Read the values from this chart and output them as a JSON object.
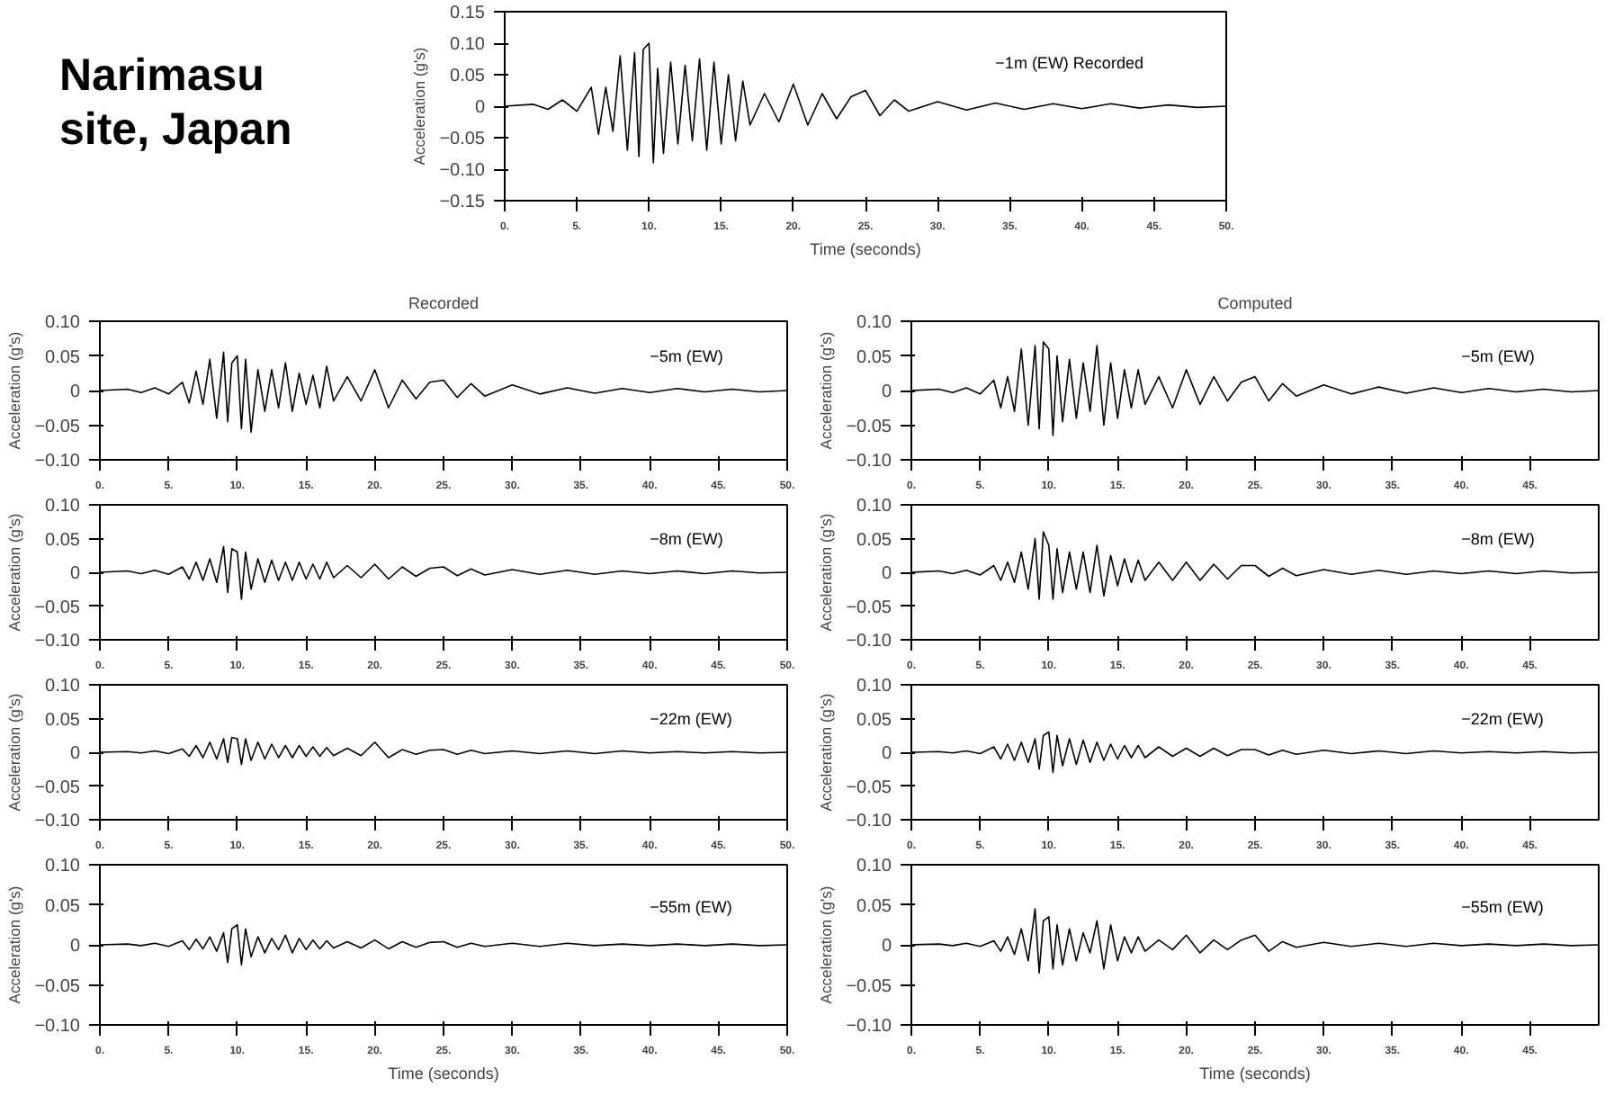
{
  "chart_data": [
    {
      "type": "line",
      "annotations": [
        "Narimasu site, Japan"
      ],
      "xlabel": "Time (seconds)",
      "ylabel": "Acceleration (g's)",
      "xlim": [
        0,
        50
      ],
      "ylim": [
        -0.15,
        0.15
      ],
      "xticks": [
        {
          "value": 0,
          "label": "0."
        },
        {
          "value": 5,
          "label": "5."
        },
        {
          "value": 10,
          "label": "10."
        },
        {
          "value": 15,
          "label": "15."
        },
        {
          "value": 20,
          "label": "20."
        },
        {
          "value": 25,
          "label": "25."
        },
        {
          "value": 30,
          "label": "30."
        },
        {
          "value": 35,
          "label": "35."
        },
        {
          "value": 40,
          "label": "40."
        },
        {
          "value": 45,
          "label": "45."
        },
        {
          "value": 50,
          "label": "50."
        }
      ],
      "yticks": [
        {
          "value": -0.15,
          "label": "−0.15"
        },
        {
          "value": -0.1,
          "label": "−0.10"
        },
        {
          "value": -0.05,
          "label": "−0.05"
        },
        {
          "value": 0,
          "label": "0"
        },
        {
          "value": 0.05,
          "label": "0.05"
        },
        {
          "value": 0.1,
          "label": "0.10"
        },
        {
          "value": 0.15,
          "label": "0.15"
        }
      ],
      "series": [
        {
          "name": "−1m (EW) Recorded",
          "color": "#000000",
          "x": [
            0,
            2,
            3,
            4,
            5,
            6,
            6.5,
            7,
            7.5,
            8,
            8.5,
            9,
            9.3,
            9.6,
            10,
            10.3,
            10.6,
            11,
            11.5,
            12,
            12.5,
            13,
            13.5,
            14,
            14.5,
            15,
            15.5,
            16,
            16.5,
            17,
            18,
            19,
            20,
            21,
            22,
            23,
            24,
            25,
            26,
            27,
            28,
            30,
            32,
            34,
            36,
            38,
            40,
            42,
            44,
            46,
            48,
            50
          ],
          "values": [
            0,
            0.003,
            -0.005,
            0.01,
            -0.008,
            0.03,
            -0.045,
            0.03,
            -0.04,
            0.08,
            -0.07,
            0.085,
            -0.08,
            0.09,
            0.1,
            -0.09,
            0.06,
            -0.075,
            0.07,
            -0.06,
            0.065,
            -0.055,
            0.075,
            -0.07,
            0.07,
            -0.06,
            0.05,
            -0.055,
            0.04,
            -0.03,
            0.02,
            -0.025,
            0.035,
            -0.03,
            0.02,
            -0.02,
            0.015,
            0.025,
            -0.015,
            0.01,
            -0.008,
            0.007,
            -0.006,
            0.005,
            -0.005,
            0.004,
            -0.004,
            0.004,
            -0.003,
            0.002,
            -0.002,
            0
          ]
        }
      ]
    },
    {
      "type": "line",
      "title": "Recorded",
      "ylabel": "Acceleration (g's)",
      "xlim": [
        0,
        50
      ],
      "ylim": [
        -0.1,
        0.1
      ],
      "xticks": [
        {
          "value": 0,
          "label": "0."
        },
        {
          "value": 5,
          "label": "5."
        },
        {
          "value": 10,
          "label": "10."
        },
        {
          "value": 15,
          "label": "15."
        },
        {
          "value": 20,
          "label": "20."
        },
        {
          "value": 25,
          "label": "25."
        },
        {
          "value": 30,
          "label": "30."
        },
        {
          "value": 35,
          "label": "35."
        },
        {
          "value": 40,
          "label": "40."
        },
        {
          "value": 45,
          "label": "45."
        },
        {
          "value": 50,
          "label": "50."
        }
      ],
      "yticks": [
        {
          "value": -0.1,
          "label": "−0.10"
        },
        {
          "value": -0.05,
          "label": "−0.05"
        },
        {
          "value": 0,
          "label": "0"
        },
        {
          "value": 0.05,
          "label": "0.05"
        },
        {
          "value": 0.1,
          "label": "0.10"
        }
      ],
      "series": [
        {
          "name": "−5m (EW)",
          "color": "#000000",
          "x": [
            0,
            2,
            3,
            4,
            5,
            6,
            6.5,
            7,
            7.5,
            8,
            8.5,
            9,
            9.3,
            9.6,
            10,
            10.3,
            10.6,
            11,
            11.5,
            12,
            12.5,
            13,
            13.5,
            14,
            14.5,
            15,
            15.5,
            16,
            16.5,
            17,
            18,
            19,
            20,
            21,
            22,
            23,
            24,
            25,
            26,
            27,
            28,
            30,
            32,
            34,
            36,
            38,
            40,
            42,
            44,
            46,
            48,
            50
          ],
          "values": [
            0,
            0.002,
            -0.003,
            0.004,
            -0.005,
            0.012,
            -0.018,
            0.028,
            -0.02,
            0.045,
            -0.04,
            0.055,
            -0.045,
            0.04,
            0.05,
            -0.055,
            0.045,
            -0.06,
            0.03,
            -0.03,
            0.03,
            -0.025,
            0.04,
            -0.03,
            0.025,
            -0.02,
            0.022,
            -0.025,
            0.035,
            -0.015,
            0.02,
            -0.015,
            0.03,
            -0.025,
            0.015,
            -0.012,
            0.012,
            0.015,
            -0.01,
            0.01,
            -0.008,
            0.008,
            -0.005,
            0.004,
            -0.004,
            0.003,
            -0.003,
            0.003,
            -0.002,
            0.002,
            -0.002,
            0
          ]
        }
      ]
    },
    {
      "type": "line",
      "ylabel": "Acceleration (g's)",
      "xlim": [
        0,
        50
      ],
      "ylim": [
        -0.1,
        0.1
      ],
      "xticks": [
        {
          "value": 0,
          "label": "0."
        },
        {
          "value": 5,
          "label": "5."
        },
        {
          "value": 10,
          "label": "10."
        },
        {
          "value": 15,
          "label": "15."
        },
        {
          "value": 20,
          "label": "20."
        },
        {
          "value": 25,
          "label": "25."
        },
        {
          "value": 30,
          "label": "30."
        },
        {
          "value": 35,
          "label": "35."
        },
        {
          "value": 40,
          "label": "40."
        },
        {
          "value": 45,
          "label": "45."
        },
        {
          "value": 50,
          "label": "50."
        }
      ],
      "yticks": [
        {
          "value": -0.1,
          "label": "−0.10"
        },
        {
          "value": -0.05,
          "label": "−0.05"
        },
        {
          "value": 0,
          "label": "0"
        },
        {
          "value": 0.05,
          "label": "0.05"
        },
        {
          "value": 0.1,
          "label": "0.10"
        }
      ],
      "series": [
        {
          "name": "−8m (EW)",
          "color": "#000000",
          "x": [
            0,
            2,
            3,
            4,
            5,
            6,
            6.5,
            7,
            7.5,
            8,
            8.5,
            9,
            9.3,
            9.6,
            10,
            10.3,
            10.6,
            11,
            11.5,
            12,
            12.5,
            13,
            13.5,
            14,
            14.5,
            15,
            15.5,
            16,
            16.5,
            17,
            18,
            19,
            20,
            21,
            22,
            23,
            24,
            25,
            26,
            27,
            28,
            30,
            32,
            34,
            36,
            38,
            40,
            42,
            44,
            46,
            48,
            50
          ],
          "values": [
            0,
            0.002,
            -0.002,
            0.003,
            -0.003,
            0.008,
            -0.01,
            0.015,
            -0.012,
            0.02,
            -0.015,
            0.038,
            -0.03,
            0.035,
            0.03,
            -0.04,
            0.03,
            -0.025,
            0.02,
            -0.015,
            0.018,
            -0.012,
            0.015,
            -0.012,
            0.015,
            -0.01,
            0.012,
            -0.01,
            0.015,
            -0.008,
            0.01,
            -0.008,
            0.012,
            -0.01,
            0.008,
            -0.006,
            0.006,
            0.008,
            -0.005,
            0.005,
            -0.004,
            0.004,
            -0.003,
            0.003,
            -0.003,
            0.002,
            -0.002,
            0.002,
            -0.002,
            0.002,
            -0.001,
            0
          ]
        }
      ]
    },
    {
      "type": "line",
      "ylabel": "Acceleration (g's)",
      "xlim": [
        0,
        50
      ],
      "ylim": [
        -0.1,
        0.1
      ],
      "xticks": [
        {
          "value": 0,
          "label": "0."
        },
        {
          "value": 5,
          "label": "5."
        },
        {
          "value": 10,
          "label": "10."
        },
        {
          "value": 15,
          "label": "15."
        },
        {
          "value": 20,
          "label": "20."
        },
        {
          "value": 25,
          "label": "25."
        },
        {
          "value": 30,
          "label": "30."
        },
        {
          "value": 35,
          "label": "35."
        },
        {
          "value": 40,
          "label": "40."
        },
        {
          "value": 45,
          "label": "45."
        },
        {
          "value": 50,
          "label": "50."
        }
      ],
      "yticks": [
        {
          "value": -0.1,
          "label": "−0.10"
        },
        {
          "value": -0.05,
          "label": "−0.05"
        },
        {
          "value": 0,
          "label": "0"
        },
        {
          "value": 0.05,
          "label": "0.05"
        },
        {
          "value": 0.1,
          "label": "0.10"
        }
      ],
      "series": [
        {
          "name": "−22m (EW)",
          "color": "#000000",
          "x": [
            0,
            2,
            3,
            4,
            5,
            6,
            6.5,
            7,
            7.5,
            8,
            8.5,
            9,
            9.3,
            9.6,
            10,
            10.3,
            10.6,
            11,
            11.5,
            12,
            12.5,
            13,
            13.5,
            14,
            14.5,
            15,
            15.5,
            16,
            16.5,
            17,
            18,
            19,
            20,
            21,
            22,
            23,
            24,
            25,
            26,
            27,
            28,
            30,
            32,
            34,
            36,
            38,
            40,
            42,
            44,
            46,
            48,
            50
          ],
          "values": [
            0,
            0.001,
            -0.001,
            0.002,
            -0.002,
            0.005,
            -0.006,
            0.01,
            -0.008,
            0.015,
            -0.01,
            0.02,
            -0.015,
            0.022,
            0.02,
            -0.018,
            0.02,
            -0.012,
            0.015,
            -0.01,
            0.012,
            -0.008,
            0.01,
            -0.008,
            0.01,
            -0.006,
            0.008,
            -0.006,
            0.007,
            -0.005,
            0.006,
            -0.005,
            0.015,
            -0.008,
            0.004,
            -0.003,
            0.003,
            0.004,
            -0.003,
            0.003,
            -0.002,
            0.002,
            -0.002,
            0.002,
            -0.002,
            0.002,
            -0.001,
            0.001,
            -0.001,
            0.001,
            -0.001,
            0
          ]
        }
      ]
    },
    {
      "type": "line",
      "xlabel": "Time (seconds)",
      "ylabel": "Acceleration (g's)",
      "xlim": [
        0,
        50
      ],
      "ylim": [
        -0.1,
        0.1
      ],
      "xticks": [
        {
          "value": 0,
          "label": "0."
        },
        {
          "value": 5,
          "label": "5."
        },
        {
          "value": 10,
          "label": "10."
        },
        {
          "value": 15,
          "label": "15."
        },
        {
          "value": 20,
          "label": "20."
        },
        {
          "value": 25,
          "label": "25."
        },
        {
          "value": 30,
          "label": "30."
        },
        {
          "value": 35,
          "label": "35."
        },
        {
          "value": 40,
          "label": "40."
        },
        {
          "value": 45,
          "label": "45."
        },
        {
          "value": 50,
          "label": "50."
        }
      ],
      "yticks": [
        {
          "value": -0.1,
          "label": "−0.10"
        },
        {
          "value": -0.05,
          "label": "−0.05"
        },
        {
          "value": 0,
          "label": "0"
        },
        {
          "value": 0.05,
          "label": "0.05"
        },
        {
          "value": 0.1,
          "label": "0.10"
        }
      ],
      "series": [
        {
          "name": "−55m (EW)",
          "color": "#000000",
          "x": [
            0,
            2,
            3,
            4,
            5,
            6,
            6.5,
            7,
            7.5,
            8,
            8.5,
            9,
            9.3,
            9.6,
            10,
            10.3,
            10.6,
            11,
            11.5,
            12,
            12.5,
            13,
            13.5,
            14,
            14.5,
            15,
            15.5,
            16,
            16.5,
            17,
            18,
            19,
            20,
            21,
            22,
            23,
            24,
            25,
            26,
            27,
            28,
            30,
            32,
            34,
            36,
            38,
            40,
            42,
            44,
            46,
            48,
            50
          ],
          "values": [
            0,
            0.001,
            -0.001,
            0.002,
            -0.002,
            0.005,
            -0.006,
            0.007,
            -0.005,
            0.01,
            -0.008,
            0.015,
            -0.022,
            0.02,
            0.025,
            -0.025,
            0.02,
            -0.015,
            0.01,
            -0.01,
            0.008,
            -0.006,
            0.012,
            -0.01,
            0.008,
            -0.006,
            0.006,
            -0.005,
            0.005,
            -0.004,
            0.004,
            -0.004,
            0.006,
            -0.005,
            0.004,
            -0.003,
            0.003,
            0.004,
            -0.003,
            0.002,
            -0.002,
            0.002,
            -0.002,
            0.002,
            -0.001,
            0.001,
            -0.001,
            0.001,
            -0.001,
            0.001,
            -0.001,
            0
          ]
        }
      ]
    },
    {
      "type": "line",
      "title": "Computed",
      "ylabel": "Acceleration (g's)",
      "xlim": [
        0,
        50
      ],
      "ylim": [
        -0.1,
        0.1
      ],
      "xticks": [
        {
          "value": 0,
          "label": "0."
        },
        {
          "value": 5,
          "label": "5."
        },
        {
          "value": 10,
          "label": "10."
        },
        {
          "value": 15,
          "label": "15."
        },
        {
          "value": 20,
          "label": "20."
        },
        {
          "value": 25,
          "label": "25."
        },
        {
          "value": 30,
          "label": "30."
        },
        {
          "value": 35,
          "label": "35."
        },
        {
          "value": 40,
          "label": "40."
        },
        {
          "value": 45,
          "label": "45."
        }
      ],
      "yticks": [
        {
          "value": -0.1,
          "label": "−0.10"
        },
        {
          "value": -0.05,
          "label": "−0.05"
        },
        {
          "value": 0,
          "label": "0"
        },
        {
          "value": 0.05,
          "label": "0.05"
        },
        {
          "value": 0.1,
          "label": "0.10"
        }
      ],
      "series": [
        {
          "name": "−5m (EW)",
          "color": "#000000",
          "x": [
            0,
            2,
            3,
            4,
            5,
            6,
            6.5,
            7,
            7.5,
            8,
            8.5,
            9,
            9.3,
            9.6,
            10,
            10.3,
            10.6,
            11,
            11.5,
            12,
            12.5,
            13,
            13.5,
            14,
            14.5,
            15,
            15.5,
            16,
            16.5,
            17,
            18,
            19,
            20,
            21,
            22,
            23,
            24,
            25,
            26,
            27,
            28,
            30,
            32,
            34,
            36,
            38,
            40,
            42,
            44,
            46,
            48,
            50
          ],
          "values": [
            0,
            0.002,
            -0.003,
            0.004,
            -0.005,
            0.015,
            -0.025,
            0.02,
            -0.03,
            0.06,
            -0.05,
            0.065,
            -0.055,
            0.07,
            0.06,
            -0.065,
            0.05,
            -0.045,
            0.045,
            -0.04,
            0.04,
            -0.03,
            0.065,
            -0.05,
            0.04,
            -0.04,
            0.03,
            -0.025,
            0.03,
            -0.02,
            0.02,
            -0.025,
            0.03,
            -0.02,
            0.02,
            -0.015,
            0.012,
            0.02,
            -0.015,
            0.01,
            -0.008,
            0.008,
            -0.005,
            0.005,
            -0.004,
            0.004,
            -0.003,
            0.003,
            -0.002,
            0.002,
            -0.002,
            0
          ]
        }
      ]
    },
    {
      "type": "line",
      "ylabel": "Acceleration (g's)",
      "xlim": [
        0,
        50
      ],
      "ylim": [
        -0.1,
        0.1
      ],
      "xticks": [
        {
          "value": 0,
          "label": "0."
        },
        {
          "value": 5,
          "label": "5."
        },
        {
          "value": 10,
          "label": "10."
        },
        {
          "value": 15,
          "label": "15."
        },
        {
          "value": 20,
          "label": "20."
        },
        {
          "value": 25,
          "label": "25."
        },
        {
          "value": 30,
          "label": "30."
        },
        {
          "value": 35,
          "label": "35."
        },
        {
          "value": 40,
          "label": "40."
        },
        {
          "value": 45,
          "label": "45."
        }
      ],
      "yticks": [
        {
          "value": -0.1,
          "label": "−0.10"
        },
        {
          "value": -0.05,
          "label": "−0.05"
        },
        {
          "value": 0,
          "label": "0"
        },
        {
          "value": 0.05,
          "label": "0.05"
        },
        {
          "value": 0.1,
          "label": "0.10"
        }
      ],
      "series": [
        {
          "name": "−8m (EW)",
          "color": "#000000",
          "x": [
            0,
            2,
            3,
            4,
            5,
            6,
            6.5,
            7,
            7.5,
            8,
            8.5,
            9,
            9.3,
            9.6,
            10,
            10.3,
            10.6,
            11,
            11.5,
            12,
            12.5,
            13,
            13.5,
            14,
            14.5,
            15,
            15.5,
            16,
            16.5,
            17,
            18,
            19,
            20,
            21,
            22,
            23,
            24,
            25,
            26,
            27,
            28,
            30,
            32,
            34,
            36,
            38,
            40,
            42,
            44,
            46,
            48,
            50
          ],
          "values": [
            0,
            0.002,
            -0.002,
            0.003,
            -0.004,
            0.01,
            -0.012,
            0.015,
            -0.015,
            0.03,
            -0.025,
            0.05,
            -0.04,
            0.06,
            0.04,
            -0.04,
            0.035,
            -0.03,
            0.03,
            -0.025,
            0.03,
            -0.03,
            0.04,
            -0.035,
            0.025,
            -0.02,
            0.02,
            -0.015,
            0.018,
            -0.012,
            0.015,
            -0.012,
            0.015,
            -0.012,
            0.012,
            -0.01,
            0.01,
            0.01,
            -0.006,
            0.006,
            -0.005,
            0.004,
            -0.003,
            0.003,
            -0.003,
            0.002,
            -0.002,
            0.002,
            -0.002,
            0.002,
            -0.001,
            0
          ]
        }
      ]
    },
    {
      "type": "line",
      "ylabel": "Acceleration (g's)",
      "xlim": [
        0,
        50
      ],
      "ylim": [
        -0.1,
        0.1
      ],
      "xticks": [
        {
          "value": 0,
          "label": "0."
        },
        {
          "value": 5,
          "label": "5."
        },
        {
          "value": 10,
          "label": "10."
        },
        {
          "value": 15,
          "label": "15."
        },
        {
          "value": 20,
          "label": "20."
        },
        {
          "value": 25,
          "label": "25."
        },
        {
          "value": 30,
          "label": "30."
        },
        {
          "value": 35,
          "label": "35."
        },
        {
          "value": 40,
          "label": "40."
        },
        {
          "value": 45,
          "label": "45."
        }
      ],
      "yticks": [
        {
          "value": -0.1,
          "label": "−0.10"
        },
        {
          "value": -0.05,
          "label": "−0.05"
        },
        {
          "value": 0,
          "label": "0"
        },
        {
          "value": 0.05,
          "label": "0.05"
        },
        {
          "value": 0.1,
          "label": "0.10"
        }
      ],
      "series": [
        {
          "name": "−22m (EW)",
          "color": "#000000",
          "x": [
            0,
            2,
            3,
            4,
            5,
            6,
            6.5,
            7,
            7.5,
            8,
            8.5,
            9,
            9.3,
            9.6,
            10,
            10.3,
            10.6,
            11,
            11.5,
            12,
            12.5,
            13,
            13.5,
            14,
            14.5,
            15,
            15.5,
            16,
            16.5,
            17,
            18,
            19,
            20,
            21,
            22,
            23,
            24,
            25,
            26,
            27,
            28,
            30,
            32,
            34,
            36,
            38,
            40,
            42,
            44,
            46,
            48,
            50
          ],
          "values": [
            0,
            0.001,
            -0.001,
            0.002,
            -0.002,
            0.008,
            -0.01,
            0.012,
            -0.012,
            0.015,
            -0.015,
            0.02,
            -0.025,
            0.025,
            0.03,
            -0.03,
            0.025,
            -0.02,
            0.02,
            -0.018,
            0.018,
            -0.015,
            0.015,
            -0.012,
            0.012,
            -0.01,
            0.01,
            -0.008,
            0.01,
            -0.008,
            0.008,
            -0.006,
            0.006,
            -0.006,
            0.006,
            -0.005,
            0.004,
            0.004,
            -0.004,
            0.003,
            -0.003,
            0.003,
            -0.002,
            0.002,
            -0.002,
            0.002,
            -0.001,
            0.001,
            -0.001,
            0.001,
            -0.001,
            0
          ]
        }
      ]
    },
    {
      "type": "line",
      "xlabel": "Time (seconds)",
      "ylabel": "Acceleration (g's)",
      "xlim": [
        0,
        50
      ],
      "ylim": [
        -0.1,
        0.1
      ],
      "xticks": [
        {
          "value": 0,
          "label": "0."
        },
        {
          "value": 5,
          "label": "5."
        },
        {
          "value": 10,
          "label": "10."
        },
        {
          "value": 15,
          "label": "15."
        },
        {
          "value": 20,
          "label": "20."
        },
        {
          "value": 25,
          "label": "25."
        },
        {
          "value": 30,
          "label": "30."
        },
        {
          "value": 35,
          "label": "35."
        },
        {
          "value": 40,
          "label": "40."
        },
        {
          "value": 45,
          "label": "45."
        }
      ],
      "yticks": [
        {
          "value": -0.1,
          "label": "−0.10"
        },
        {
          "value": -0.05,
          "label": "−0.05"
        },
        {
          "value": 0,
          "label": "0"
        },
        {
          "value": 0.05,
          "label": "0.05"
        },
        {
          "value": 0.1,
          "label": "0.10"
        }
      ],
      "series": [
        {
          "name": "−55m (EW)",
          "color": "#000000",
          "x": [
            0,
            2,
            3,
            4,
            5,
            6,
            6.5,
            7,
            7.5,
            8,
            8.5,
            9,
            9.3,
            9.6,
            10,
            10.3,
            10.6,
            11,
            11.5,
            12,
            12.5,
            13,
            13.5,
            14,
            14.5,
            15,
            15.5,
            16,
            16.5,
            17,
            18,
            19,
            20,
            21,
            22,
            23,
            24,
            25,
            26,
            27,
            28,
            30,
            32,
            34,
            36,
            38,
            40,
            42,
            44,
            46,
            48,
            50
          ],
          "values": [
            0,
            0.001,
            -0.001,
            0.002,
            -0.002,
            0.005,
            -0.008,
            0.01,
            -0.012,
            0.02,
            -0.02,
            0.045,
            -0.035,
            0.03,
            0.035,
            -0.03,
            0.025,
            -0.025,
            0.02,
            -0.02,
            0.015,
            -0.01,
            0.03,
            -0.03,
            0.025,
            -0.02,
            0.01,
            -0.01,
            0.01,
            -0.008,
            0.006,
            -0.006,
            0.012,
            -0.01,
            0.006,
            -0.006,
            0.006,
            0.012,
            -0.008,
            0.004,
            -0.003,
            0.003,
            -0.002,
            0.002,
            -0.002,
            0.002,
            -0.001,
            0.001,
            -0.001,
            0.001,
            -0.001,
            0
          ]
        }
      ]
    }
  ]
}
